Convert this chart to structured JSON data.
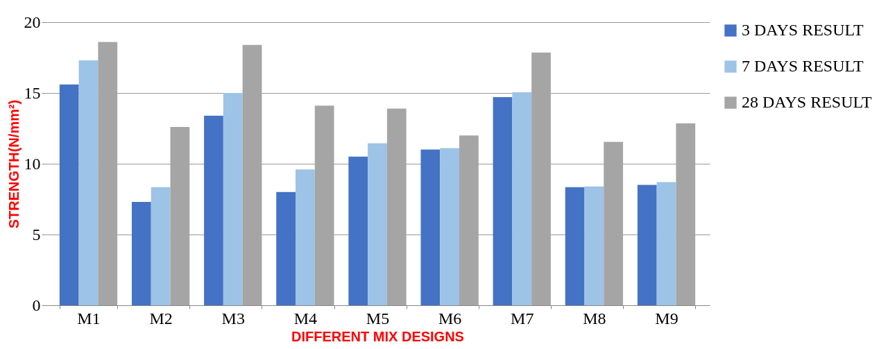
{
  "chart_data": {
    "type": "bar",
    "xlabel": "DIFFERENT MIX DESIGNS",
    "ylabel": "STRENGTH(N/mm²)",
    "categories": [
      "M1",
      "M2",
      "M3",
      "M4",
      "M5",
      "M6",
      "M7",
      "M8",
      "M9"
    ],
    "series": [
      {
        "name": "3 DAYS RESULT",
        "color": "#4472c4",
        "values": [
          15.6,
          7.3,
          13.4,
          8.0,
          10.5,
          11.0,
          14.7,
          8.35,
          8.5
        ]
      },
      {
        "name": "7 DAYS RESULT",
        "color": "#9dc3e6",
        "values": [
          17.3,
          8.35,
          15.0,
          9.6,
          11.45,
          11.1,
          15.05,
          8.4,
          8.7
        ]
      },
      {
        "name": "28 DAYS RESULT",
        "color": "#a5a5a5",
        "values": [
          18.6,
          12.6,
          18.4,
          14.1,
          13.9,
          12.0,
          17.85,
          11.55,
          12.85
        ]
      }
    ],
    "ylim": [
      0,
      20
    ],
    "yticks": [
      0,
      5,
      10,
      15,
      20
    ],
    "grid": "y",
    "legend": "right"
  }
}
